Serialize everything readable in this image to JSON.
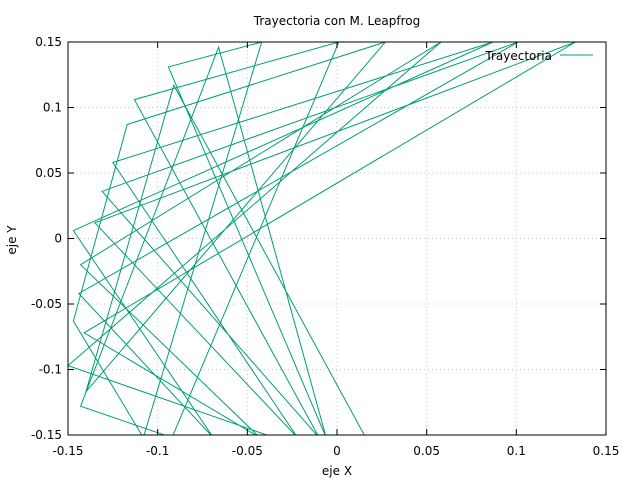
{
  "chart_data": {
    "type": "line",
    "title": "Trayectoria con M. Leapfrog",
    "xlabel": "eje X",
    "ylabel": "eje Y",
    "xlim": [
      -0.15,
      0.15
    ],
    "ylim": [
      -0.15,
      0.15
    ],
    "x_ticks": [
      "-0.15",
      "-0.1",
      "-0.05",
      "0",
      "0.05",
      "0.1",
      "0.15"
    ],
    "y_ticks": [
      "-0.15",
      "-0.1",
      "-0.05",
      "0",
      "0.05",
      "0.1",
      "0.15"
    ],
    "grid": true,
    "legend_position": "top-right",
    "series": [
      {
        "name": "Trayectoria",
        "color": "#009e73",
        "points": [
          [
            -0.035,
            -0.152
          ],
          [
            -0.15,
            -0.097
          ],
          [
            0.058,
            0.15
          ],
          [
            -0.143,
            -0.02
          ],
          [
            -0.043,
            -0.152
          ],
          [
            -0.141,
            -0.072
          ],
          [
            0.133,
            0.15
          ],
          [
            -0.135,
            0.012
          ],
          [
            -0.022,
            -0.152
          ],
          [
            -0.125,
            0.058
          ],
          [
            0.087,
            0.15
          ],
          [
            -0.147,
            0.006
          ],
          [
            -0.069,
            -0.152
          ],
          [
            -0.144,
            -0.042
          ],
          [
            0.101,
            0.15
          ],
          [
            -0.131,
            0.036
          ],
          [
            -0.01,
            -0.152
          ],
          [
            -0.113,
            0.106
          ],
          [
            0.001,
            0.15
          ],
          [
            -0.092,
            -0.152
          ],
          [
            -0.143,
            -0.128
          ],
          [
            -0.066,
            0.146
          ],
          [
            -0.006,
            -0.152
          ],
          [
            -0.094,
            0.131
          ],
          [
            -0.042,
            0.15
          ],
          [
            -0.108,
            -0.152
          ],
          [
            -0.147,
            -0.063
          ],
          [
            -0.117,
            0.087
          ],
          [
            0.027,
            0.15
          ],
          [
            -0.14,
            -0.117
          ],
          [
            -0.091,
            0.117
          ],
          [
            0.016,
            -0.152
          ]
        ]
      }
    ]
  }
}
